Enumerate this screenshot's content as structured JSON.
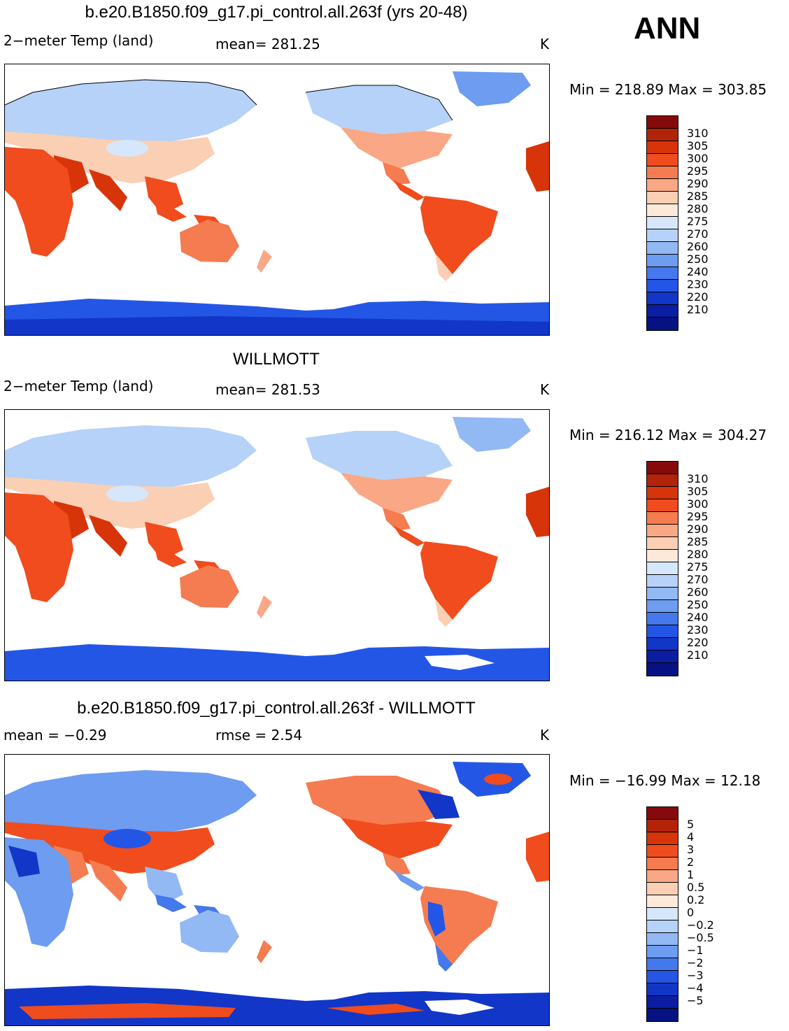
{
  "season": "ANN",
  "panels": [
    {
      "title": "b.e20.B1850.f09_g17.pi_control.all.263f (yrs 20-48)",
      "variable": "2−meter Temp (land)",
      "stat": "mean=  281.25",
      "units": "K",
      "minmax": "Min  =  218.89  Max  =  303.85",
      "colorbar": {
        "colors": [
          "#860a0a",
          "#b22308",
          "#d7340a",
          "#f04c1d",
          "#f57b50",
          "#f9a785",
          "#fbcfb3",
          "#fde9da",
          "#d6e7fb",
          "#b6d2f8",
          "#93b9f4",
          "#6d9cf0",
          "#4478ec",
          "#2456e6",
          "#1136c8",
          "#0a1da3",
          "#061282"
        ],
        "labels": [
          "310",
          "305",
          "300",
          "295",
          "290",
          "285",
          "280",
          "275",
          "270",
          "260",
          "250",
          "240",
          "230",
          "220",
          "210"
        ]
      }
    },
    {
      "title": "WILLMOTT",
      "variable": "2−meter Temp (land)",
      "stat": "mean=  281.53",
      "units": "K",
      "minmax": "Min  =  216.12  Max  =  304.27",
      "colorbar": {
        "colors": [
          "#860a0a",
          "#b22308",
          "#d7340a",
          "#f04c1d",
          "#f57b50",
          "#f9a785",
          "#fbcfb3",
          "#fde9da",
          "#d6e7fb",
          "#b6d2f8",
          "#93b9f4",
          "#6d9cf0",
          "#4478ec",
          "#2456e6",
          "#1136c8",
          "#0a1da3",
          "#061282"
        ],
        "labels": [
          "310",
          "305",
          "300",
          "295",
          "290",
          "285",
          "280",
          "275",
          "270",
          "260",
          "250",
          "240",
          "230",
          "220",
          "210"
        ]
      }
    },
    {
      "title": "b.e20.B1850.f09_g17.pi_control.all.263f - WILLMOTT",
      "variable": "mean =    −0.29",
      "stat": "rmse =     2.54",
      "units": "K",
      "minmax": "Min  =  −16.99  Max  =    12.18",
      "colorbar": {
        "colors": [
          "#860a0a",
          "#b22308",
          "#d7340a",
          "#f04c1d",
          "#f57b50",
          "#f9a785",
          "#fbcfb3",
          "#fde9da",
          "#d6e7fb",
          "#b6d2f8",
          "#93b9f4",
          "#6d9cf0",
          "#4478ec",
          "#2456e6",
          "#1136c8",
          "#0a1da3",
          "#061282"
        ],
        "labels": [
          "5",
          "4",
          "3",
          "2",
          "1",
          "0.5",
          "0.2",
          "0",
          "−0.2",
          "−0.5",
          "−1",
          "−2",
          "−3",
          "−4",
          "−5"
        ]
      }
    }
  ]
}
